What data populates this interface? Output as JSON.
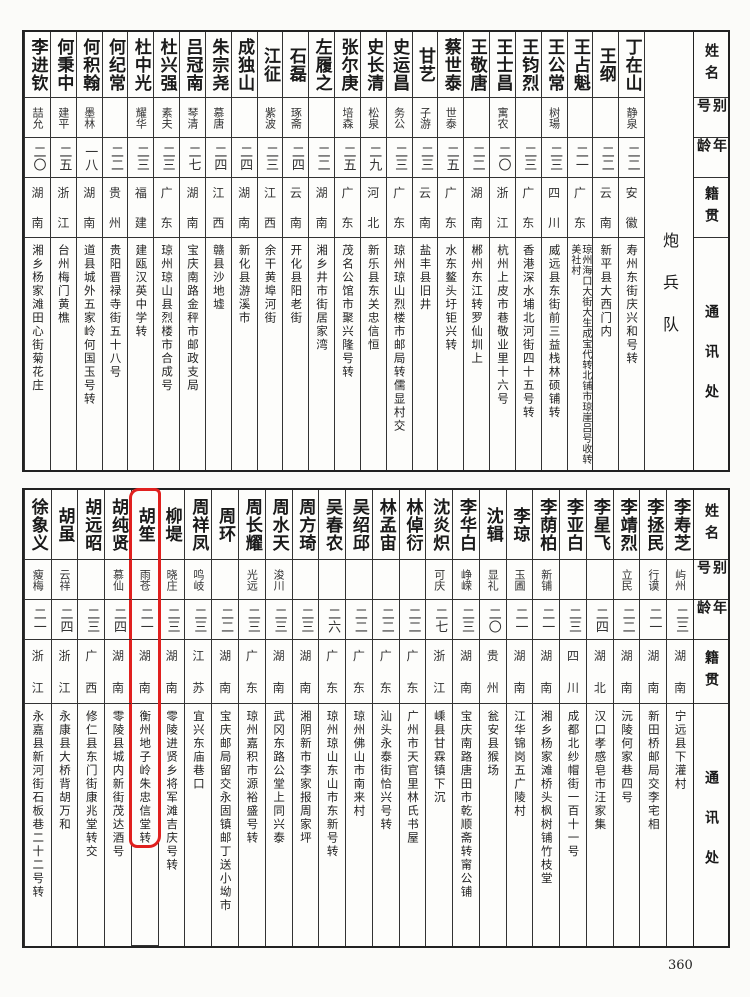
{
  "headers": {
    "name": "姓名",
    "alias": "别号",
    "age": "年龄",
    "province": "籍贯",
    "address": "通讯处"
  },
  "top": {
    "section": "炮兵队",
    "entries": [
      {
        "name": "丁在山",
        "alias": "静泉",
        "age": "二二",
        "province": [
          "安",
          "徽"
        ],
        "address": "寿州东街庆兴和号转"
      },
      {
        "name": "王纲",
        "alias": "",
        "age": "二二",
        "province": [
          "云",
          "南"
        ],
        "address": "新平县大西门内"
      },
      {
        "name": "王占魁",
        "alias": "",
        "age": "二一",
        "province": [
          "广",
          "东"
        ],
        "address": "琼州海口大街大生成宝代转北铺市琼崖吕号收转美社村"
      },
      {
        "name": "王公常",
        "alias": "树瑒",
        "age": "二三",
        "province": [
          "四",
          "川"
        ],
        "address": "威远县东街前三益栈林硕铺转"
      },
      {
        "name": "王钧烈",
        "alias": "",
        "age": "二三",
        "province": [
          "广",
          "东"
        ],
        "address": "香港深水埔北河街四十五号转"
      },
      {
        "name": "王士昌",
        "alias": "寓农",
        "age": "二〇",
        "province": [
          "浙",
          "江"
        ],
        "address": "杭州上皮市巷敬业里十六号"
      },
      {
        "name": "王敬唐",
        "alias": "",
        "age": "二二",
        "province": [
          "湖",
          "南"
        ],
        "address": "郴州东江转罗仙圳上"
      },
      {
        "name": "蔡世泰",
        "alias": "世泰",
        "age": "二五",
        "province": [
          "广",
          "东"
        ],
        "address": "水东鳌头圩钜兴转"
      },
      {
        "name": "甘艺",
        "alias": "子游",
        "age": "二三",
        "province": [
          "云",
          "南"
        ],
        "address": "盐丰县旧井"
      },
      {
        "name": "史运昌",
        "alias": "务公",
        "age": "二三",
        "province": [
          "广",
          "东"
        ],
        "address": "琼州琼山烈楼市邮局转儒显村交"
      },
      {
        "name": "史长清",
        "alias": "松泉",
        "age": "二九",
        "province": [
          "河",
          "北"
        ],
        "address": "新乐县东关忠信恒"
      },
      {
        "name": "张尔庚",
        "alias": "培森",
        "age": "二五",
        "province": [
          "广",
          "东"
        ],
        "address": "茂名公馆市聚兴隆号转"
      },
      {
        "name": "左履之",
        "alias": "",
        "age": "二二",
        "province": [
          "湖",
          "南"
        ],
        "address": "湘乡井市街居家湾"
      },
      {
        "name": "石磊",
        "alias": "琢斋",
        "age": "二四",
        "province": [
          "云",
          "南"
        ],
        "address": "开化县阳老街"
      },
      {
        "name": "江征",
        "alias": "紫波",
        "age": "二三",
        "province": [
          "江",
          "西"
        ],
        "address": "余干黄埠河街"
      },
      {
        "name": "成独山",
        "alias": "",
        "age": "二四",
        "province": [
          "湖",
          "南"
        ],
        "address": "新化县游溪市"
      },
      {
        "name": "朱宗尧",
        "alias": "慕唐",
        "age": "二四",
        "province": [
          "江",
          "西"
        ],
        "address": "赣县沙地墟"
      },
      {
        "name": "吕冠南",
        "alias": "琴清",
        "age": "二七",
        "province": [
          "湖",
          "南"
        ],
        "address": "宝庆南路金秤市邮政支局"
      },
      {
        "name": "杜兴强",
        "alias": "素夫",
        "age": "二三",
        "province": [
          "广",
          "东"
        ],
        "address": "琼州琼山县烈楼市合成号"
      },
      {
        "name": "杜中光",
        "alias": "耀华",
        "age": "二三",
        "province": [
          "福",
          "建"
        ],
        "address": "建瓯汉英中学转"
      },
      {
        "name": "何纪常",
        "alias": "",
        "age": "二二",
        "province": [
          "贵",
          "州"
        ],
        "address": "贵阳晋禄寺街五十八号"
      },
      {
        "name": "何积翰",
        "alias": "墨林",
        "age": "一八",
        "province": [
          "湖",
          "南"
        ],
        "address": "道县城外五家岭何国玉号转"
      },
      {
        "name": "何秉中",
        "alias": "建平",
        "age": "二五",
        "province": [
          "浙",
          "江"
        ],
        "address": "台州梅门黄樵"
      },
      {
        "name": "李进钦",
        "alias": "喆允",
        "age": "二〇",
        "province": [
          "湖",
          "南"
        ],
        "address": "湘乡杨家滩田心街菊花庄"
      }
    ]
  },
  "bottom": {
    "highlighted_name": "胡笙",
    "highlight_color": "#e0201e",
    "entries": [
      {
        "name": "李寿芝",
        "alias": "屿州",
        "age": "二三",
        "province": [
          "湖",
          "南"
        ],
        "address": "宁远县下灌村"
      },
      {
        "name": "李拯民",
        "alias": "行谟",
        "age": "二一",
        "province": [
          "湖",
          "南"
        ],
        "address": "新田桥邮局交李宅相"
      },
      {
        "name": "李靖烈",
        "alias": "立民",
        "age": "二二",
        "province": [
          "湖",
          "南"
        ],
        "address": "沅陵何家巷四号"
      },
      {
        "name": "李星飞",
        "alias": "",
        "age": "二四",
        "province": [
          "湖",
          "北"
        ],
        "address": "汉口孝感皂市汪家集"
      },
      {
        "name": "李亚白",
        "alias": "",
        "age": "二三",
        "province": [
          "四",
          "川"
        ],
        "address": "成都北纱帽街一百十一号"
      },
      {
        "name": "李荫柏",
        "alias": "新铺",
        "age": "二一",
        "province": [
          "湖",
          "南"
        ],
        "address": "湘乡杨家滩桥头枫树铺竹枝堂"
      },
      {
        "name": "李琼",
        "alias": "玉圃",
        "age": "二一",
        "province": [
          "湖",
          "南"
        ],
        "address": "江华锦岗五广陵村"
      },
      {
        "name": "沈辑",
        "alias": "显礼",
        "age": "二〇",
        "province": [
          "贵",
          "州"
        ],
        "address": "瓮安县猴场"
      },
      {
        "name": "李华白",
        "alias": "峥嵘",
        "age": "二三",
        "province": [
          "湖",
          "南"
        ],
        "address": "宝庆南路唐田市乾顺斋转甯公铺"
      },
      {
        "name": "沈炎炽",
        "alias": "可庆",
        "age": "二七",
        "province": [
          "浙",
          "江"
        ],
        "address": "嵊县甘霖镇下沉"
      },
      {
        "name": "林倬衍",
        "alias": "",
        "age": "二二",
        "province": [
          "广",
          "东"
        ],
        "address": "广州市天官里林氏书屋"
      },
      {
        "name": "林孟宙",
        "alias": "",
        "age": "二二",
        "province": [
          "广",
          "东"
        ],
        "address": "汕头永泰街恰兴号转"
      },
      {
        "name": "吴绍邱",
        "alias": "",
        "age": "二二",
        "province": [
          "广",
          "东"
        ],
        "address": "琼州佛山市南来村"
      },
      {
        "name": "吴春农",
        "alias": "",
        "age": "二六",
        "province": [
          "广",
          "东"
        ],
        "address": "琼州琼山东山市东新号转"
      },
      {
        "name": "周方琦",
        "alias": "",
        "age": "二三",
        "province": [
          "湖",
          "南"
        ],
        "address": "湘阴新市李家报周家坪"
      },
      {
        "name": "周水天",
        "alias": "浚川",
        "age": "二三",
        "province": [
          "湖",
          "南"
        ],
        "address": "武冈东路公堂上同兴泰"
      },
      {
        "name": "周长耀",
        "alias": "光远",
        "age": "二三",
        "province": [
          "广",
          "东"
        ],
        "address": "琼州嘉积市源裕盛号转"
      },
      {
        "name": "周环",
        "alias": "",
        "age": "二二",
        "province": [
          "湖",
          "南"
        ],
        "address": "宝庆邮局留交永固镇邮丁送小坳市"
      },
      {
        "name": "周祥凤",
        "alias": "鸣岐",
        "age": "二三",
        "province": [
          "江",
          "苏"
        ],
        "address": "宜兴东庙巷口"
      },
      {
        "name": "柳堤",
        "alias": "晓庄",
        "age": "二三",
        "province": [
          "湖",
          "南"
        ],
        "address": "零陵进贤乡将军滩吉庆号转"
      },
      {
        "name": "胡笙",
        "alias": "雨苍",
        "age": "二一",
        "province": [
          "湖",
          "南"
        ],
        "address": "衡州地子岭朱忠信堂转"
      },
      {
        "name": "胡纯贤",
        "alias": "慕仙",
        "age": "二四",
        "province": [
          "湖",
          "南"
        ],
        "address": "零陵县城内新街茂达酒号"
      },
      {
        "name": "胡远昭",
        "alias": "",
        "age": "二三",
        "province": [
          "广",
          "西"
        ],
        "address": "修仁县东门街康兆堂转交"
      },
      {
        "name": "胡虽",
        "alias": "云祥",
        "age": "二四",
        "province": [
          "浙",
          "江"
        ],
        "address": "永康县大桥背胡万和"
      },
      {
        "name": "徐象义",
        "alias": "瘦梅",
        "age": "二一",
        "province": [
          "浙",
          "江"
        ],
        "address": "永嘉县新河街石板巷二十二号转"
      }
    ]
  },
  "page_number": "360"
}
